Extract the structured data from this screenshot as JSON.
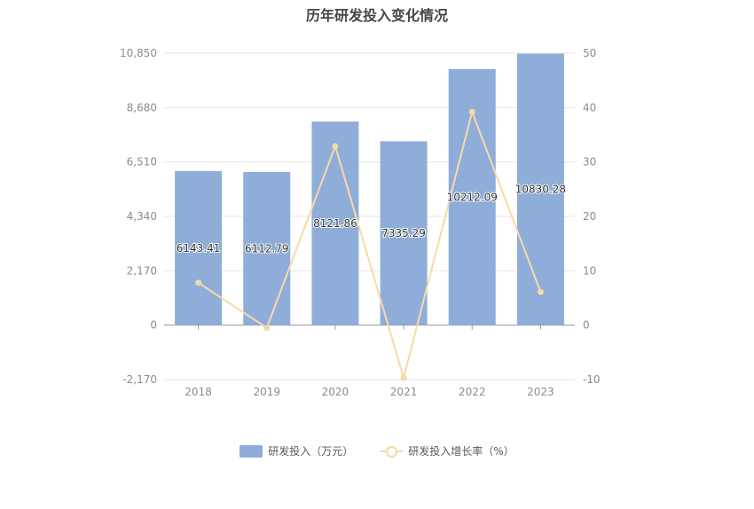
{
  "chart_data": {
    "type": "bar",
    "title": "历年研发投入变化情况",
    "categories": [
      "2018",
      "2019",
      "2020",
      "2021",
      "2022",
      "2023"
    ],
    "series": [
      {
        "name": "研发投入（万元）",
        "type": "bar",
        "axis": "left",
        "values": [
          6143.41,
          6112.79,
          8121.86,
          7335.29,
          10212.09,
          10830.28
        ],
        "labels": [
          "6143.41",
          "6112.79",
          "8121.86",
          "7335.29",
          "10212.09",
          "10830.28"
        ]
      },
      {
        "name": "研发投入增长率（%）",
        "type": "line",
        "axis": "right",
        "values": [
          7.8,
          -0.5,
          32.9,
          -9.7,
          39.2,
          6.1
        ]
      }
    ],
    "y_left": {
      "ylim": [
        -2170,
        10850
      ],
      "ticks": [
        "-2,170",
        "0",
        "2,170",
        "4,340",
        "6,510",
        "8,680",
        "10,850"
      ],
      "tick_values": [
        -2170,
        0,
        2170,
        4340,
        6510,
        8680,
        10850
      ]
    },
    "y_right": {
      "ylim": [
        -10,
        50
      ],
      "ticks": [
        "-10",
        "0",
        "10",
        "20",
        "30",
        "40",
        "50"
      ],
      "tick_values": [
        -10,
        0,
        10,
        20,
        30,
        40,
        50
      ]
    },
    "grid": true,
    "legend_position": "bottom-center",
    "colors": {
      "bar": "#8eadd9",
      "line": "#f8d9a6",
      "grid": "#e6e6e6",
      "axis": "#999999"
    }
  }
}
